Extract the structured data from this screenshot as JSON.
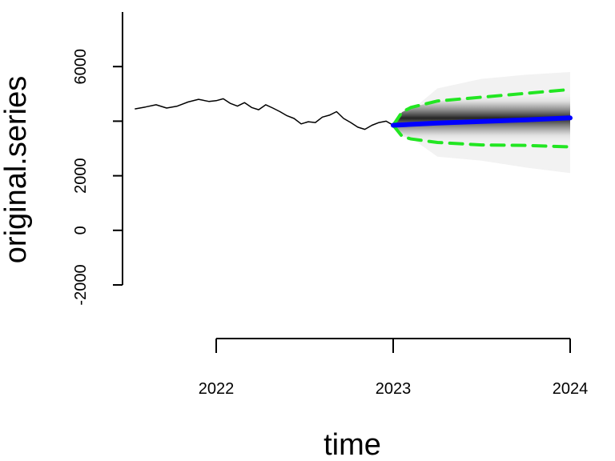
{
  "chart_data": {
    "type": "line",
    "title": "",
    "xlabel": "time",
    "ylabel": "original.series",
    "xlim": [
      2021.5,
      2024.0
    ],
    "ylim": [
      -2000,
      8000
    ],
    "x_ticks": [
      2022,
      2023,
      2024
    ],
    "x_tick_labels": [
      "2022",
      "2023",
      "2024"
    ],
    "y_ticks": [
      -2000,
      0,
      2000,
      4000,
      6000
    ],
    "y_tick_labels": [
      "-2000",
      "0",
      "2000",
      "",
      "6000"
    ],
    "grid": false,
    "legend": null,
    "colors": {
      "history": "#000000",
      "forecast": "#0000ff",
      "interval": "#22e622",
      "fan": "#000000"
    },
    "series": [
      {
        "role": "history",
        "x": [
          2021.54,
          2021.6,
          2021.66,
          2021.72,
          2021.78,
          2021.84,
          2021.9,
          2021.96,
          2022.0,
          2022.04,
          2022.08,
          2022.12,
          2022.16,
          2022.2,
          2022.24,
          2022.28,
          2022.32,
          2022.36,
          2022.4,
          2022.44,
          2022.48,
          2022.52,
          2022.56,
          2022.6,
          2022.64,
          2022.68,
          2022.72,
          2022.76,
          2022.8,
          2022.84,
          2022.88,
          2022.92,
          2022.96,
          2023.0
        ],
        "values": [
          4450,
          4520,
          4600,
          4480,
          4550,
          4700,
          4800,
          4720,
          4750,
          4820,
          4650,
          4550,
          4680,
          4500,
          4420,
          4600,
          4480,
          4350,
          4200,
          4100,
          3900,
          3980,
          3950,
          4150,
          4220,
          4350,
          4100,
          3950,
          3780,
          3700,
          3850,
          3950,
          4000,
          3850
        ]
      },
      {
        "role": "forecast",
        "x": [
          2023.0,
          2023.25,
          2023.5,
          2023.75,
          2024.0
        ],
        "values": [
          3850,
          3930,
          3990,
          4050,
          4120
        ]
      },
      {
        "role": "upper_interval",
        "x": [
          2023.0,
          2023.05,
          2023.1,
          2023.25,
          2023.5,
          2023.75,
          2024.0
        ],
        "values": [
          3850,
          4330,
          4500,
          4740,
          4880,
          5020,
          5160
        ]
      },
      {
        "role": "lower_interval",
        "x": [
          2023.0,
          2023.05,
          2023.1,
          2023.25,
          2023.5,
          2023.75,
          2024.0
        ],
        "values": [
          3850,
          3450,
          3350,
          3220,
          3130,
          3110,
          3060
        ]
      },
      {
        "role": "fan_outer_upper",
        "x": [
          2023.0,
          2023.25,
          2023.5,
          2023.75,
          2024.0
        ],
        "values": [
          3850,
          5200,
          5550,
          5700,
          5800
        ]
      },
      {
        "role": "fan_outer_lower",
        "x": [
          2023.0,
          2023.25,
          2023.5,
          2023.75,
          2024.0
        ],
        "values": [
          3850,
          2700,
          2550,
          2300,
          2100
        ]
      }
    ]
  }
}
